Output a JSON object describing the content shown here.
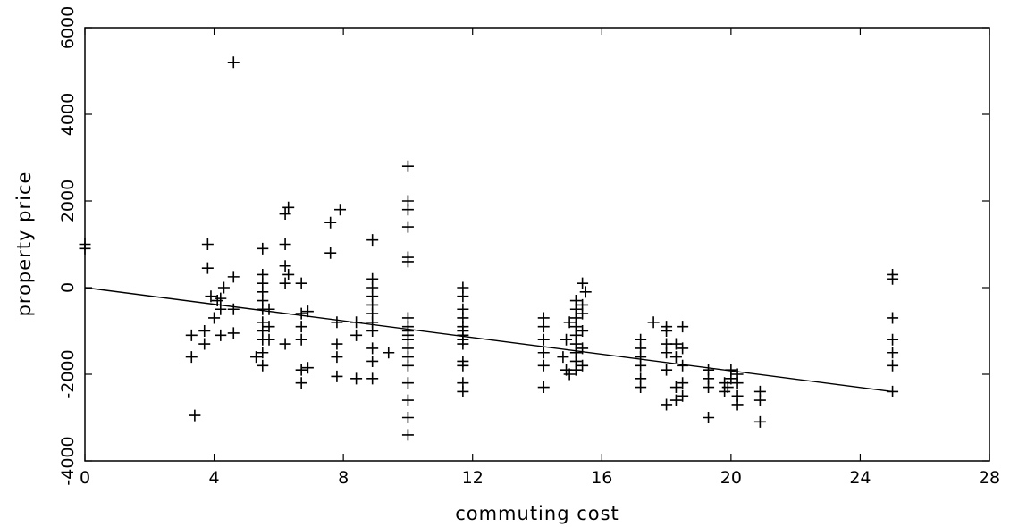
{
  "chart_data": {
    "type": "scatter",
    "title": "",
    "xlabel": "commuting cost",
    "ylabel": "property price",
    "xlim": [
      0,
      28
    ],
    "ylim": [
      -4000,
      6000
    ],
    "x_ticks": [
      0,
      4,
      8,
      12,
      16,
      20,
      24,
      28
    ],
    "y_ticks": [
      -4000,
      -2000,
      0,
      2000,
      4000,
      6000
    ],
    "grid": false,
    "legend": "none",
    "marker": "plus",
    "colors": {
      "points": "#000000",
      "line": "#000000",
      "frame": "#000000"
    },
    "trend_line": {
      "x": [
        0,
        25
      ],
      "y": [
        0,
        -2400
      ]
    },
    "points": [
      [
        0,
        900
      ],
      [
        0,
        1000
      ],
      [
        3.3,
        -1600
      ],
      [
        3.3,
        -1100
      ],
      [
        3.4,
        -2950
      ],
      [
        3.7,
        -1300
      ],
      [
        3.7,
        -1000
      ],
      [
        3.8,
        450
      ],
      [
        3.8,
        1000
      ],
      [
        3.9,
        -200
      ],
      [
        4.0,
        -700
      ],
      [
        4.1,
        -300
      ],
      [
        4.2,
        -1100
      ],
      [
        4.2,
        -500
      ],
      [
        4.2,
        -250
      ],
      [
        4.3,
        0
      ],
      [
        4.6,
        5200
      ],
      [
        4.6,
        -1050
      ],
      [
        4.6,
        -500
      ],
      [
        4.6,
        250
      ],
      [
        5.3,
        -1600
      ],
      [
        5.5,
        -1800
      ],
      [
        5.5,
        -1500
      ],
      [
        5.5,
        -1200
      ],
      [
        5.5,
        -1000
      ],
      [
        5.5,
        -800
      ],
      [
        5.5,
        -500
      ],
      [
        5.5,
        -300
      ],
      [
        5.5,
        -100
      ],
      [
        5.5,
        100
      ],
      [
        5.5,
        300
      ],
      [
        5.5,
        900
      ],
      [
        5.7,
        -1200
      ],
      [
        5.7,
        -900
      ],
      [
        5.7,
        -500
      ],
      [
        6.2,
        -1300
      ],
      [
        6.2,
        100
      ],
      [
        6.2,
        500
      ],
      [
        6.2,
        1000
      ],
      [
        6.2,
        1700
      ],
      [
        6.3,
        1850
      ],
      [
        6.3,
        300
      ],
      [
        6.7,
        -2200
      ],
      [
        6.7,
        -1900
      ],
      [
        6.7,
        -1200
      ],
      [
        6.7,
        -900
      ],
      [
        6.7,
        -600
      ],
      [
        6.7,
        100
      ],
      [
        6.9,
        -1850
      ],
      [
        6.9,
        -550
      ],
      [
        7.6,
        800
      ],
      [
        7.6,
        1500
      ],
      [
        7.9,
        1800
      ],
      [
        7.8,
        -2050
      ],
      [
        7.8,
        -1600
      ],
      [
        7.8,
        -1300
      ],
      [
        7.8,
        -800
      ],
      [
        8.4,
        -2100
      ],
      [
        8.4,
        -1100
      ],
      [
        8.4,
        -800
      ],
      [
        8.9,
        -2100
      ],
      [
        8.9,
        -1700
      ],
      [
        8.9,
        -1400
      ],
      [
        8.9,
        -1000
      ],
      [
        8.9,
        -800
      ],
      [
        8.9,
        -600
      ],
      [
        8.9,
        -400
      ],
      [
        8.9,
        -200
      ],
      [
        8.9,
        0
      ],
      [
        8.9,
        200
      ],
      [
        8.9,
        1100
      ],
      [
        9.4,
        -1500
      ],
      [
        10.0,
        -3400
      ],
      [
        10.0,
        -3000
      ],
      [
        10.0,
        -2600
      ],
      [
        10.0,
        -2200
      ],
      [
        10.0,
        -1800
      ],
      [
        10.0,
        -1600
      ],
      [
        10.0,
        -1400
      ],
      [
        10.0,
        -1200
      ],
      [
        10.0,
        -1100
      ],
      [
        10.0,
        -1000
      ],
      [
        10.0,
        -900
      ],
      [
        10.0,
        -700
      ],
      [
        10.0,
        600
      ],
      [
        10.0,
        700
      ],
      [
        10.0,
        1400
      ],
      [
        10.0,
        1800
      ],
      [
        10.0,
        2000
      ],
      [
        10.0,
        2800
      ],
      [
        11.7,
        -2400
      ],
      [
        11.7,
        -2200
      ],
      [
        11.7,
        -1800
      ],
      [
        11.7,
        -1700
      ],
      [
        11.7,
        -1300
      ],
      [
        11.7,
        -1200
      ],
      [
        11.7,
        -1100
      ],
      [
        11.7,
        -1000
      ],
      [
        11.7,
        -900
      ],
      [
        11.7,
        -700
      ],
      [
        11.7,
        -500
      ],
      [
        11.7,
        -200
      ],
      [
        11.7,
        0
      ],
      [
        14.2,
        -2300
      ],
      [
        14.2,
        -1800
      ],
      [
        14.2,
        -1500
      ],
      [
        14.2,
        -1200
      ],
      [
        14.2,
        -900
      ],
      [
        14.2,
        -700
      ],
      [
        14.8,
        -1600
      ],
      [
        14.9,
        -1900
      ],
      [
        14.9,
        -1200
      ],
      [
        15.0,
        -2000
      ],
      [
        15.0,
        -800
      ],
      [
        15.2,
        -1900
      ],
      [
        15.2,
        -1700
      ],
      [
        15.2,
        -1500
      ],
      [
        15.2,
        -1300
      ],
      [
        15.2,
        -1100
      ],
      [
        15.2,
        -900
      ],
      [
        15.2,
        -700
      ],
      [
        15.2,
        -500
      ],
      [
        15.2,
        -300
      ],
      [
        15.4,
        -1800
      ],
      [
        15.4,
        -1400
      ],
      [
        15.4,
        -1000
      ],
      [
        15.4,
        -600
      ],
      [
        15.4,
        -400
      ],
      [
        15.4,
        100
      ],
      [
        15.5,
        -100
      ],
      [
        17.2,
        -2300
      ],
      [
        17.2,
        -2100
      ],
      [
        17.2,
        -1800
      ],
      [
        17.2,
        -1600
      ],
      [
        17.2,
        -1400
      ],
      [
        17.2,
        -1200
      ],
      [
        17.6,
        -800
      ],
      [
        18.0,
        -2700
      ],
      [
        18.0,
        -1900
      ],
      [
        18.0,
        -1500
      ],
      [
        18.0,
        -1300
      ],
      [
        18.0,
        -1000
      ],
      [
        18.0,
        -900
      ],
      [
        18.3,
        -2600
      ],
      [
        18.3,
        -2300
      ],
      [
        18.3,
        -1600
      ],
      [
        18.3,
        -1300
      ],
      [
        18.5,
        -2500
      ],
      [
        18.5,
        -2200
      ],
      [
        18.5,
        -1800
      ],
      [
        18.5,
        -1400
      ],
      [
        18.5,
        -900
      ],
      [
        19.3,
        -3000
      ],
      [
        19.3,
        -2300
      ],
      [
        19.3,
        -2100
      ],
      [
        19.3,
        -1900
      ],
      [
        19.8,
        -2400
      ],
      [
        19.8,
        -2200
      ],
      [
        19.9,
        -2300
      ],
      [
        20.0,
        -2100
      ],
      [
        20.0,
        -1900
      ],
      [
        20.2,
        -2700
      ],
      [
        20.2,
        -2500
      ],
      [
        20.2,
        -2200
      ],
      [
        20.2,
        -2000
      ],
      [
        20.9,
        -3100
      ],
      [
        20.9,
        -2600
      ],
      [
        20.9,
        -2400
      ],
      [
        25.0,
        -2400
      ],
      [
        25.0,
        -1800
      ],
      [
        25.0,
        -1500
      ],
      [
        25.0,
        -1200
      ],
      [
        25.0,
        -700
      ],
      [
        25.0,
        200
      ],
      [
        25.0,
        300
      ]
    ]
  }
}
